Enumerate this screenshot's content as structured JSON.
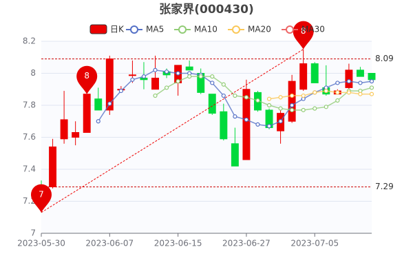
{
  "chart_data": {
    "type": "candlestick",
    "title": "张家界(000430)",
    "categories": [
      "2023-05-30",
      null,
      null,
      null,
      null,
      null,
      "2023-06-07",
      null,
      null,
      null,
      null,
      null,
      "2023-06-15",
      null,
      null,
      null,
      null,
      null,
      "2023-06-27",
      null,
      null,
      null,
      null,
      null,
      "2023-07-05",
      null,
      null,
      null,
      null,
      null
    ],
    "candles": {
      "name": "日K",
      "up_color": "#ec0000",
      "down_color": "#00da3c",
      "open": [
        7.3,
        7.29,
        7.59,
        7.6,
        7.63,
        7.84,
        7.77,
        7.9,
        7.99,
        7.97,
        7.9,
        8.01,
        7.94,
        8.04,
        8.0,
        7.87,
        7.76,
        7.56,
        7.46,
        7.88,
        7.77,
        7.64,
        7.7,
        7.9,
        8.06,
        7.91,
        7.87,
        7.91,
        8.02,
        8.0
      ],
      "close": [
        7.29,
        7.54,
        7.71,
        7.63,
        7.87,
        7.77,
        8.09,
        7.9,
        7.99,
        7.96,
        7.97,
        7.99,
        8.05,
        8.02,
        7.88,
        7.75,
        7.59,
        7.42,
        7.9,
        7.77,
        7.66,
        7.75,
        7.95,
        8.06,
        7.94,
        7.87,
        7.89,
        8.02,
        7.98,
        7.96
      ],
      "low": [
        7.13,
        7.28,
        7.56,
        7.55,
        7.63,
        7.77,
        7.74,
        7.88,
        7.94,
        7.9,
        7.9,
        7.97,
        7.86,
        8.02,
        7.87,
        7.74,
        7.58,
        7.42,
        7.46,
        7.76,
        7.65,
        7.56,
        7.69,
        7.89,
        7.94,
        7.86,
        7.87,
        7.9,
        7.98,
        7.95
      ],
      "high": [
        7.33,
        7.59,
        7.89,
        7.7,
        7.87,
        7.91,
        8.11,
        7.92,
        8.08,
        8.07,
        8.11,
        8.03,
        8.05,
        8.08,
        8.03,
        7.87,
        7.81,
        7.66,
        7.96,
        7.89,
        7.78,
        7.77,
        7.99,
        8.15,
        8.07,
        8.05,
        7.9,
        8.06,
        8.04,
        8.0
      ]
    },
    "series": [
      {
        "name": "MA5",
        "color": "#5470c6",
        "values": [
          null,
          null,
          null,
          null,
          null,
          7.7,
          7.81,
          7.89,
          7.96,
          7.98,
          8.02,
          8.01,
          8.0,
          8.0,
          7.99,
          7.94,
          7.86,
          7.73,
          7.71,
          7.68,
          7.67,
          7.7,
          7.8,
          7.84,
          7.88,
          7.91,
          7.94,
          7.95,
          7.94,
          7.95
        ]
      },
      {
        "name": "MA10",
        "color": "#91cc75",
        "values": [
          null,
          null,
          null,
          null,
          null,
          null,
          null,
          null,
          null,
          null,
          7.86,
          7.91,
          7.95,
          7.98,
          7.98,
          7.98,
          7.93,
          7.86,
          7.85,
          7.83,
          7.8,
          7.78,
          7.77,
          7.77,
          7.78,
          7.79,
          7.83,
          7.89,
          7.89,
          7.91
        ]
      },
      {
        "name": "MA20",
        "color": "#fac858",
        "values": [
          null,
          null,
          null,
          null,
          null,
          null,
          null,
          null,
          null,
          null,
          null,
          null,
          null,
          null,
          null,
          null,
          null,
          null,
          null,
          null,
          7.84,
          7.85,
          7.86,
          7.86,
          7.88,
          7.89,
          7.88,
          7.88,
          7.87,
          7.87
        ]
      },
      {
        "name": "MA30",
        "color": "#ee6666",
        "values": [
          null,
          null,
          null,
          null,
          null,
          null,
          null,
          null,
          null,
          null,
          null,
          null,
          null,
          null,
          null,
          null,
          null,
          null,
          null,
          null,
          null,
          null,
          null,
          null,
          null,
          null,
          null,
          null,
          null,
          null
        ]
      }
    ],
    "mark_points": [
      {
        "index": 0,
        "value": 7.13,
        "label": "7"
      },
      {
        "index": 4,
        "value": 7.87,
        "label": "8"
      },
      {
        "index": 23,
        "value": 8.15,
        "label": "8"
      }
    ],
    "mark_lines": [
      8.09,
      7.29
    ],
    "ylim": [
      7,
      8.2
    ],
    "yticks": [
      7,
      7.2,
      7.4,
      7.6,
      7.8,
      8,
      8.2
    ],
    "grid": true
  }
}
